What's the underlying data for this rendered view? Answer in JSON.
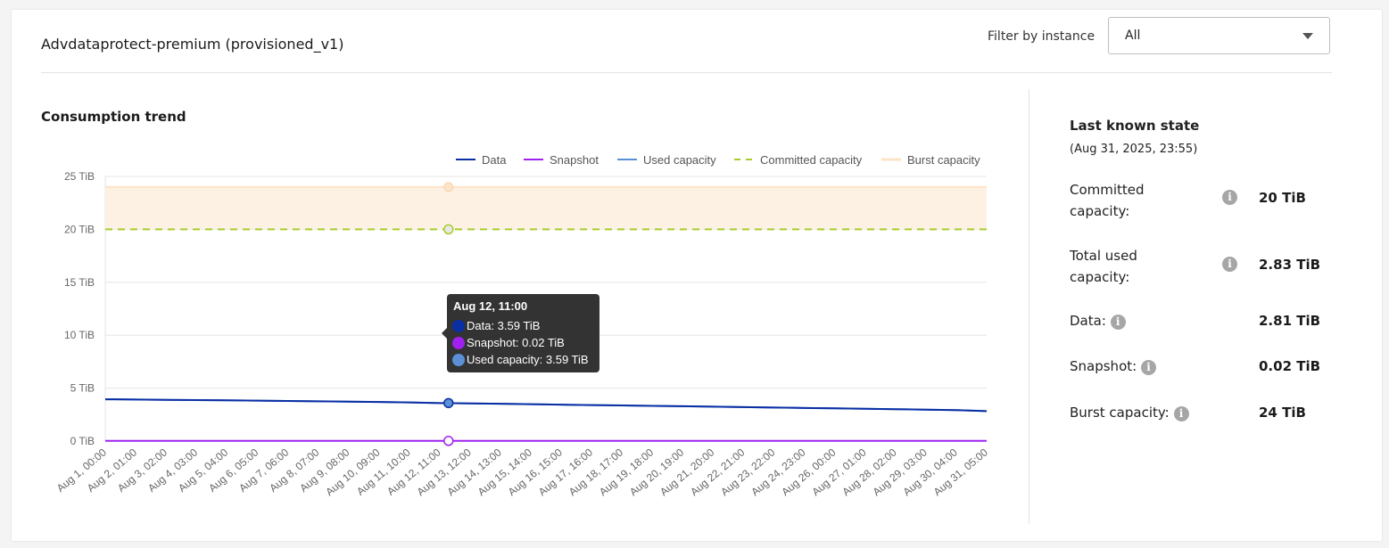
{
  "header": {
    "title": "Advdataprotect-premium (provisioned_v1)",
    "filter_label": "Filter by instance",
    "filter_value": "All"
  },
  "chart_section": {
    "title": "Consumption trend"
  },
  "side": {
    "title": "Last known state",
    "timestamp": "(Aug 31, 2025, 23:55)",
    "rows": [
      {
        "label_1": "Committed",
        "label_2": "capacity:",
        "value": "20 TiB"
      },
      {
        "label_1": "Total used",
        "label_2": "capacity:",
        "value": "2.83 TiB"
      },
      {
        "label": "Data:",
        "value": "2.81 TiB"
      },
      {
        "label": "Snapshot:",
        "value": "0.02 TiB"
      },
      {
        "label": "Burst capacity:",
        "value": "24 TiB"
      }
    ]
  },
  "tooltip": {
    "title": "Aug 12, 11:00",
    "rows": [
      "Data: 3.59 TiB",
      "Snapshot: 0.02 TiB",
      "Used capacity: 3.59 TiB"
    ]
  },
  "chart_data": {
    "type": "line",
    "ylim": [
      0,
      25
    ],
    "yticks": [
      "0 TiB",
      "5 TiB",
      "10 TiB",
      "15 TiB",
      "20 TiB",
      "25 TiB"
    ],
    "ytick_values": [
      0,
      5,
      10,
      15,
      20,
      25
    ],
    "grid": true,
    "legend_position": "top-right",
    "categories": [
      "Aug 1, 00:00",
      "Aug 2, 01:00",
      "Aug 3, 02:00",
      "Aug 4, 03:00",
      "Aug 5, 04:00",
      "Aug 6, 05:00",
      "Aug 7, 06:00",
      "Aug 8, 07:00",
      "Aug 9, 08:00",
      "Aug 10, 09:00",
      "Aug 11, 10:00",
      "Aug 12, 11:00",
      "Aug 13, 12:00",
      "Aug 14, 13:00",
      "Aug 15, 14:00",
      "Aug 16, 15:00",
      "Aug 17, 16:00",
      "Aug 18, 17:00",
      "Aug 19, 18:00",
      "Aug 20, 19:00",
      "Aug 21, 20:00",
      "Aug 22, 21:00",
      "Aug 23, 22:00",
      "Aug 24, 23:00",
      "Aug 26, 00:00",
      "Aug 27, 01:00",
      "Aug 28, 02:00",
      "Aug 29, 03:00",
      "Aug 30, 04:00",
      "Aug 31, 05:00"
    ],
    "series": [
      {
        "name": "Data",
        "color": "#0a2ea4",
        "style": "solid",
        "values": [
          3.95,
          3.92,
          3.89,
          3.87,
          3.85,
          3.82,
          3.79,
          3.76,
          3.72,
          3.69,
          3.65,
          3.59,
          3.56,
          3.52,
          3.48,
          3.44,
          3.4,
          3.37,
          3.33,
          3.29,
          3.25,
          3.21,
          3.17,
          3.13,
          3.09,
          3.05,
          3.01,
          2.97,
          2.93,
          2.83
        ]
      },
      {
        "name": "Snapshot",
        "color": "#a020f0",
        "style": "solid",
        "values": [
          0.02,
          0.02,
          0.02,
          0.02,
          0.02,
          0.02,
          0.02,
          0.02,
          0.02,
          0.02,
          0.02,
          0.02,
          0.02,
          0.02,
          0.02,
          0.02,
          0.02,
          0.02,
          0.02,
          0.02,
          0.02,
          0.02,
          0.02,
          0.02,
          0.02,
          0.02,
          0.02,
          0.02,
          0.02,
          0.02
        ]
      },
      {
        "name": "Used capacity",
        "color": "#5b8fd6",
        "style": "solid",
        "values": [
          3.95,
          3.92,
          3.89,
          3.87,
          3.85,
          3.82,
          3.79,
          3.76,
          3.72,
          3.69,
          3.65,
          3.59,
          3.56,
          3.52,
          3.48,
          3.44,
          3.4,
          3.37,
          3.33,
          3.29,
          3.25,
          3.21,
          3.17,
          3.13,
          3.09,
          3.05,
          3.01,
          2.97,
          2.93,
          2.83
        ]
      },
      {
        "name": "Committed capacity",
        "color": "#a8cc2a",
        "style": "dashed",
        "constant": 20
      },
      {
        "name": "Burst capacity",
        "color": "#fde3c8",
        "style": "area",
        "constant": 24
      }
    ],
    "highlight_index": 11
  }
}
